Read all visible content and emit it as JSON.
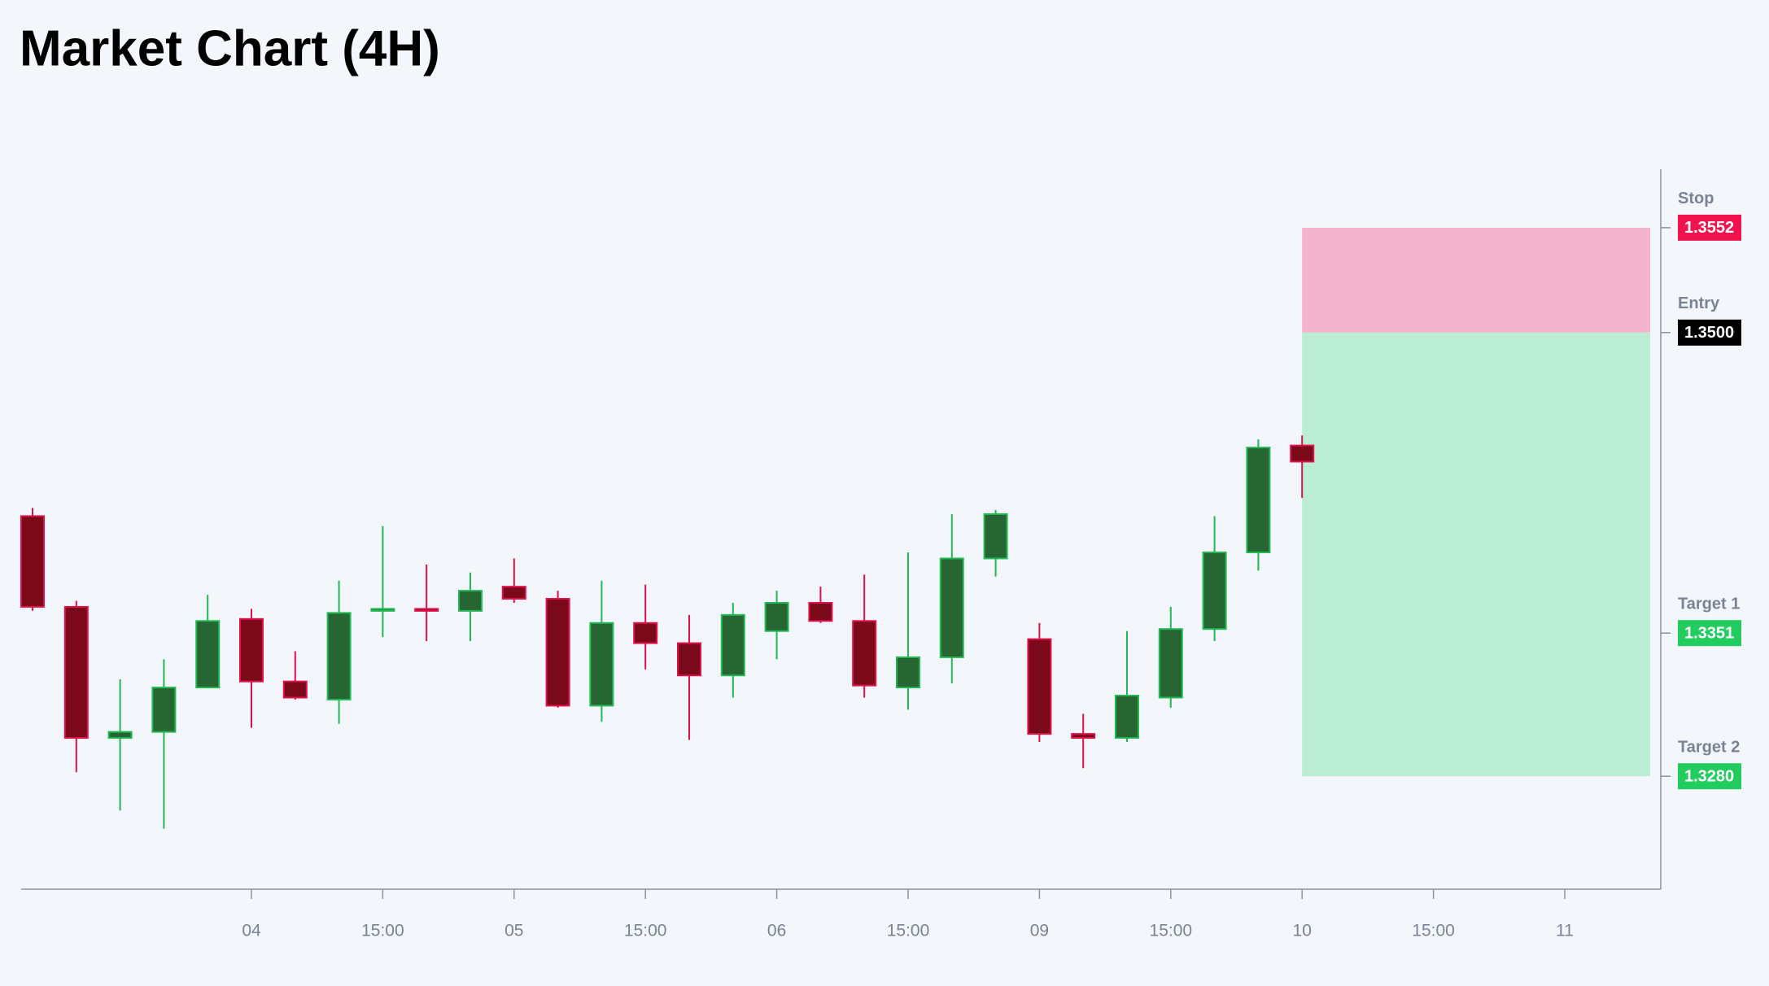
{
  "chart_data": {
    "type": "candlestick",
    "title": "Market Chart (4H)",
    "categories": [
      null,
      null,
      null,
      null,
      null,
      "04",
      null,
      null,
      "15:00",
      null,
      null,
      "05",
      null,
      null,
      "15:00",
      null,
      null,
      "06",
      null,
      null,
      "15:00",
      null,
      null,
      "09",
      null,
      null,
      "15:00",
      null,
      null,
      "10",
      null,
      null,
      "15:00",
      null,
      null,
      "11"
    ],
    "open": [
      1.3409,
      1.3364,
      1.3299,
      1.3302,
      1.3324,
      1.3358,
      1.3327,
      1.3318,
      1.3362,
      1.3363,
      1.3362,
      1.3374,
      1.3368,
      1.3315,
      1.3356,
      1.3346,
      1.333,
      1.3352,
      1.3366,
      1.3357,
      1.3324,
      1.3339,
      1.3388,
      1.3348,
      1.3301,
      1.3299,
      1.3319,
      1.3353,
      1.3391,
      1.3444,
      null,
      null,
      null,
      null,
      null,
      null
    ],
    "high": [
      1.3413,
      1.3367,
      1.3328,
      1.3338,
      1.337,
      1.3363,
      1.3342,
      1.3377,
      1.3404,
      1.3385,
      1.3381,
      1.3388,
      1.3372,
      1.3377,
      1.3375,
      1.336,
      1.3366,
      1.3372,
      1.3374,
      1.338,
      1.3391,
      1.341,
      1.3412,
      1.3356,
      1.3311,
      1.3352,
      1.3364,
      1.3409,
      1.3447,
      1.3449,
      null,
      null,
      null,
      null,
      null,
      null
    ],
    "low": [
      1.3362,
      1.3282,
      1.3263,
      1.3254,
      1.3324,
      1.3304,
      1.3318,
      1.3306,
      1.3349,
      1.3347,
      1.3347,
      1.3366,
      1.3314,
      1.3307,
      1.3333,
      1.3298,
      1.3319,
      1.3338,
      1.3356,
      1.3319,
      1.3313,
      1.3326,
      1.3379,
      1.3297,
      1.3284,
      1.3297,
      1.3314,
      1.3347,
      1.3382,
      1.3418,
      null,
      null,
      null,
      null,
      null,
      null
    ],
    "close": [
      1.3364,
      1.3299,
      1.3302,
      1.3324,
      1.3357,
      1.3327,
      1.3319,
      1.3361,
      1.3363,
      1.3362,
      1.3372,
      1.3368,
      1.3315,
      1.3356,
      1.3346,
      1.333,
      1.336,
      1.3366,
      1.3357,
      1.3325,
      1.3339,
      1.3388,
      1.341,
      1.3301,
      1.3299,
      1.332,
      1.3353,
      1.3391,
      1.3443,
      1.3436,
      null,
      null,
      null,
      null,
      null,
      null
    ],
    "up_color": "#276632",
    "up_border": "#22b954",
    "down_color": "#7a0a1a",
    "down_border": "#e0104a",
    "ylim": [
      1.3224,
      1.3581
    ],
    "levels": [
      {
        "name": "Stop",
        "value": 1.3552,
        "label": "1.3552",
        "color": "#f0134d"
      },
      {
        "name": "Entry",
        "value": 1.35,
        "label": "1.3500",
        "color": "#000000"
      },
      {
        "name": "Target 1",
        "value": 1.3351,
        "label": "1.3351",
        "color": "#22cc5e"
      },
      {
        "name": "Target 2",
        "value": 1.328,
        "label": "1.3280",
        "color": "#22cc5e"
      }
    ],
    "stop_zone_color": "#f4b4cb",
    "target_zone_color": "#bbedd4"
  }
}
